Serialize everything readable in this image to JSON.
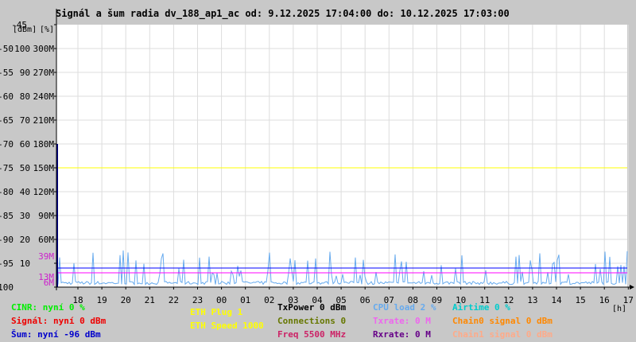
{
  "chart_data": {
    "type": "line",
    "title": "Signál a šum radia dv_188_ap1_ac od: 9.12.2025 17:04:00 do: 10.12.2025 17:03:00",
    "unit_labels": [
      "[dBm]",
      "[%]"
    ],
    "x_unit": "[h]",
    "x_ticks": [
      "18",
      "19",
      "20",
      "21",
      "22",
      "23",
      "00",
      "01",
      "02",
      "03",
      "04",
      "05",
      "06",
      "07",
      "08",
      "09",
      "10",
      "11",
      "12",
      "13",
      "14",
      "15",
      "16",
      "17"
    ],
    "dbm_axis": {
      "range": [
        -100,
        -45
      ],
      "ticks": [
        "-45",
        "-50",
        "-55",
        "-60",
        "-65",
        "-70",
        "-75",
        "-80",
        "-85",
        "-90",
        "-95",
        "-100"
      ]
    },
    "pct_axis": {
      "range": [
        0,
        100
      ],
      "ticks": [
        "100",
        "90",
        "80",
        "70",
        "60",
        "50",
        "40",
        "30",
        "20",
        "10"
      ]
    },
    "rate_axis": {
      "ticks": [
        "300M",
        "270M",
        "240M",
        "210M",
        "180M",
        "150M",
        "120M",
        "90M",
        "60M",
        "39M",
        "13M",
        "6M"
      ]
    },
    "reference_lines": [
      {
        "axis": "dbm",
        "value": -75,
        "color": "#ffff00"
      },
      {
        "axis": "dbm",
        "value": -96,
        "color": "#0000ff"
      },
      {
        "axis": "dbm",
        "value": -97,
        "color": "#ff00ff"
      }
    ],
    "series": [
      {
        "name": "CPU load",
        "axis": "pct",
        "color": "#66aaee",
        "style": "spiky",
        "baseline": 1,
        "peaks": [
          4,
          14
        ]
      }
    ],
    "startup_spike": {
      "axis": "dbm",
      "value": -70,
      "color": "#000080"
    }
  },
  "legend": [
    [
      {
        "label": "CINR: nyní 0 %",
        "color": "#00ee00"
      },
      {
        "label": "Signál: nyní 0 dBm",
        "color": "#ee0000"
      },
      {
        "label": "Šum: nyní -96 dBm",
        "color": "#0000cc"
      }
    ],
    [
      {
        "label": "ETH Plug 1",
        "color": "#ffff00"
      },
      {
        "label": "ETH Speed 1000",
        "color": "#ffff00"
      }
    ],
    [
      {
        "label": "TxPower 0 dBm",
        "color": "#000000"
      },
      {
        "label": "Connections 0",
        "color": "#667700"
      },
      {
        "label": "Freq 5500 MHz",
        "color": "#cc2266"
      }
    ],
    [
      {
        "label": "CPU load 2 %",
        "color": "#66aaee"
      },
      {
        "label": "Txrate: 0 M",
        "color": "#ee66ee"
      },
      {
        "label": "Rxrate: 0 M",
        "color": "#660088"
      }
    ],
    [
      {
        "label": "Airtime 0 %",
        "color": "#00cccc"
      },
      {
        "label": "Chain0 signal 0 dBm",
        "color": "#ff8800"
      },
      {
        "label": "Chain1 signal 0 dBm",
        "color": "#ffaa88"
      }
    ]
  ]
}
